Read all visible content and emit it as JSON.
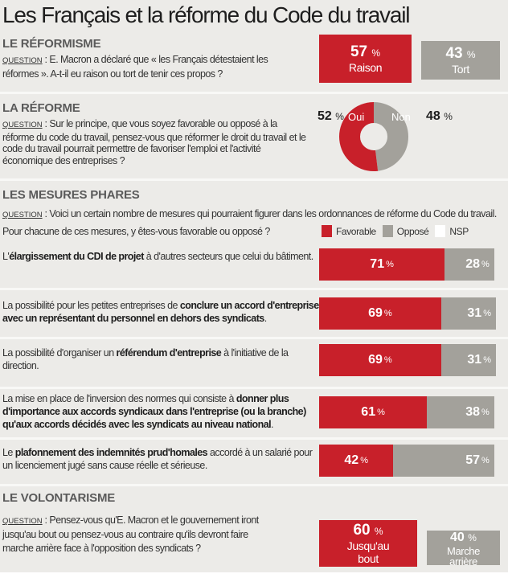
{
  "title": "Les Français et la réforme du Code du travail",
  "question_label": "QUESTION",
  "unit": "%",
  "chart_data": [
    {
      "type": "bar",
      "title": "LE RÉFORMISME",
      "question": "E. Macron a déclaré que « les Français détestaient les réformes ». A-t-il eu raison ou tort de tenir ces propos ?",
      "categories": [
        "Raison",
        "Tort"
      ],
      "values": [
        57,
        43
      ],
      "colors": [
        "#c8202a",
        "#a3a19b"
      ]
    },
    {
      "type": "pie",
      "donut": true,
      "title": "LA RÉFORME",
      "question": "Sur le principe, que vous soyez favorable ou opposé à la réforme du code du travail, pensez-vous que réformer le droit du travail et le code du travail pourrait permettre de favoriser l'emploi et l'activité économique des entreprises ?",
      "categories": [
        "Oui",
        "Non"
      ],
      "values": [
        52,
        48
      ],
      "colors": [
        "#c8202a",
        "#a3a19b"
      ]
    },
    {
      "type": "bar",
      "stacked": true,
      "orientation": "horizontal",
      "title": "LES MESURES PHARES",
      "question": "Voici un certain nombre de mesures qui pourraient figurer dans les ordonnances de réforme du Code du travail. Pour chacune de ces mesures, y êtes-vous favorable ou opposé ?",
      "legend": [
        "Favorable",
        "Opposé",
        "NSP"
      ],
      "legend_colors": [
        "#c8202a",
        "#a3a19b",
        "#ffffff"
      ],
      "rows": [
        {
          "pre": "L'",
          "bold": "élargissement du CDI de projet",
          "post": " à d'autres secteurs que celui du bâtiment.",
          "favorable": 71,
          "oppose": 28
        },
        {
          "pre": "La possibilité pour les petites entreprises de ",
          "bold": "conclure un accord d'entreprise avec un représentant du personnel en dehors des syndicats",
          "post": ".",
          "favorable": 69,
          "oppose": 31
        },
        {
          "pre": "La possibilité d'organiser un ",
          "bold": "référendum d'entreprise",
          "post": " à l'initiative de la direction.",
          "favorable": 69,
          "oppose": 31
        },
        {
          "pre": "La mise en place de l'inversion des normes qui consiste à ",
          "bold": "donner plus d'importance aux accords syndicaux dans l'entreprise (ou la branche) qu'aux accords décidés avec les syndicats au niveau national",
          "post": ".",
          "favorable": 61,
          "oppose": 38
        },
        {
          "pre": "Le ",
          "bold": "plafonnement des indemnités prud'homales",
          "post": " accordé à un salarié pour un licenciement jugé sans cause réelle et sérieuse.",
          "favorable": 42,
          "oppose": 57
        }
      ]
    },
    {
      "type": "bar",
      "title": "LE VOLONTARISME",
      "question": "Pensez-vous qu'E. Macron et le gouvernement iront jusqu'au bout ou pensez-vous au contraire qu'ils devront faire marche arrière face à l'opposition des syndicats ?",
      "categories": [
        "Jusqu'au bout",
        "Marche arrière"
      ],
      "values": [
        60,
        40
      ],
      "colors": [
        "#c8202a",
        "#a3a19b"
      ]
    }
  ]
}
